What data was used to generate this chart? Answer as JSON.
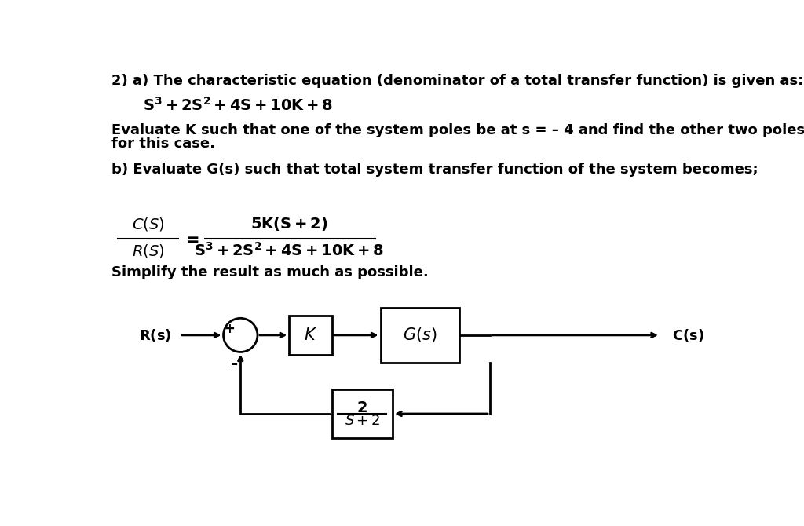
{
  "background_color": "#ffffff",
  "title_line1": "2) a) The characteristic equation (denominator of a total transfer function) is given as:",
  "text2a": "Evaluate K such that one of the system poles be at s = – 4 and find the other two poles",
  "text2b": "for this case.",
  "text3": "b) Evaluate G(s) such that total system transfer function of the system becomes;",
  "text4": "Simplify the result as much as possible.",
  "font_size_main": 13,
  "font_size_eq": 13
}
